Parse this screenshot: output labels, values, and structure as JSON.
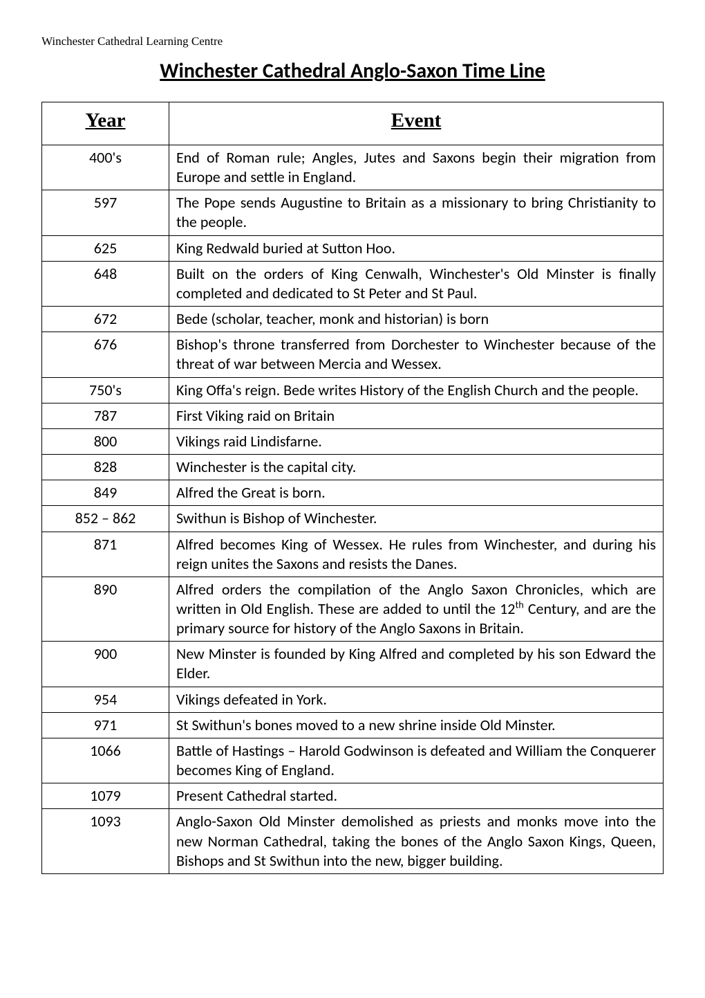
{
  "header": {
    "label": "Winchester Cathedral Learning Centre"
  },
  "title": "Winchester Cathedral Anglo-Saxon Time Line",
  "table": {
    "headers": {
      "year": "Year",
      "event": "Event"
    },
    "rows": [
      {
        "year": "400's",
        "event": "End of Roman rule; Angles, Jutes and Saxons begin their migration from Europe and settle in England.",
        "justify": true
      },
      {
        "year": "597",
        "event": "The Pope sends Augustine to Britain as a missionary to bring Christianity to the people.",
        "justify": true
      },
      {
        "year": "625",
        "event": "King Redwald buried at Sutton Hoo.",
        "justify": false
      },
      {
        "year": "648",
        "event": "Built on the orders of King Cenwalh, Winchester's Old Minster is finally completed and dedicated to St Peter and St Paul.",
        "justify": true
      },
      {
        "year": "672",
        "event": "Bede (scholar, teacher, monk and historian) is born",
        "justify": false
      },
      {
        "year": "676",
        "event": "Bishop's throne transferred from Dorchester to Winchester because of the threat of war between Mercia and Wessex.",
        "justify": true
      },
      {
        "year": "750's",
        "event": "King Offa's reign.  Bede writes History of the English Church and the people.",
        "justify": true
      },
      {
        "year": "787",
        "event": "First Viking raid on Britain",
        "justify": false
      },
      {
        "year": "800",
        "event": "Vikings raid Lindisfarne.",
        "justify": false
      },
      {
        "year": "828",
        "event": "Winchester is the capital city.",
        "justify": false
      },
      {
        "year": "849",
        "event": "Alfred the Great is born.",
        "justify": false
      },
      {
        "year": "852 – 862",
        "event": "Swithun is Bishop of Winchester.",
        "justify": false
      },
      {
        "year": "871",
        "event": "Alfred becomes King of Wessex. He rules from Winchester, and during his reign unites the Saxons and resists the Danes.",
        "justify": true
      },
      {
        "year": "890",
        "event_html": "Alfred orders the compilation of the Anglo Saxon Chronicles, which are written in Old English. These are added to until the 12<sup>th</sup> Century, and are the primary source for history of the Anglo Saxons in Britain.",
        "justify": true
      },
      {
        "year": "900",
        "event": "New Minster is founded by King Alfred and completed by his son Edward the Elder.",
        "justify": true
      },
      {
        "year": "954",
        "event": "Vikings defeated in York.",
        "justify": false
      },
      {
        "year": "971",
        "event": "St Swithun's bones moved to a new shrine inside Old Minster.",
        "justify": false
      },
      {
        "year": "1066",
        "event": "Battle of Hastings – Harold Godwinson is defeated and William the Conquerer becomes King of England.",
        "justify": true
      },
      {
        "year": "1079",
        "event": "Present Cathedral started.",
        "justify": false
      },
      {
        "year": "1093",
        "event": "Anglo-Saxon Old Minster demolished as priests and monks move into the new Norman Cathedral, taking the bones of the Anglo Saxon Kings, Queen, Bishops and St Swithun into the new, bigger building.",
        "justify": true
      }
    ]
  }
}
